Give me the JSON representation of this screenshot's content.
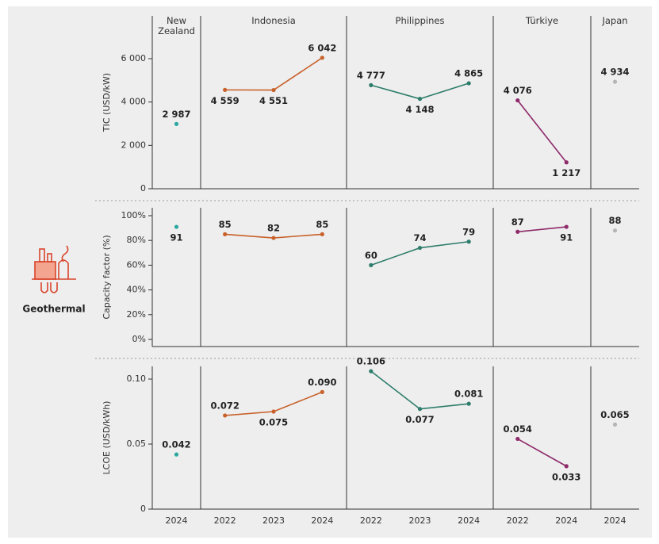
{
  "technology": "Geothermal",
  "chart_data": [
    {
      "type": "line",
      "title": "TIC (USD/kW)",
      "ylim": [
        0,
        8000
      ],
      "yticks": [
        0,
        {
          "value": 2000,
          "label": "2 000"
        },
        {
          "value": 4000,
          "label": "4 000"
        },
        {
          "value": 6000,
          "label": "6 000"
        }
      ],
      "series": [
        {
          "name": "New Zealand",
          "color": "#2aa8a0",
          "categories": [
            "2024"
          ],
          "values": [
            2987
          ],
          "value_labels": [
            "2 987"
          ]
        },
        {
          "name": "Indonesia",
          "color": "#c8612a",
          "categories": [
            "2022",
            "2023",
            "2024"
          ],
          "values": [
            4559,
            4551,
            6042
          ],
          "value_labels": [
            "4 559",
            "4 551",
            "6 042"
          ]
        },
        {
          "name": "Philippines",
          "color": "#2e7d6b",
          "categories": [
            "2022",
            "2023",
            "2024"
          ],
          "values": [
            4777,
            4148,
            4865
          ],
          "value_labels": [
            "4 777",
            "4 148",
            "4 865"
          ]
        },
        {
          "name": "Türkiye",
          "color": "#8e2a6a",
          "categories": [
            "2022",
            "2024"
          ],
          "values": [
            4076,
            1217
          ],
          "value_labels": [
            "4 076",
            "1 217"
          ]
        },
        {
          "name": "Japan",
          "color": "#b5b5b5",
          "categories": [
            "2024"
          ],
          "values": [
            4934
          ],
          "value_labels": [
            "4 934"
          ]
        }
      ]
    },
    {
      "type": "line",
      "title": "Capacity factor (%)",
      "ylim": [
        0,
        100
      ],
      "yticks": [
        {
          "value": 0,
          "label": "0%"
        },
        {
          "value": 20,
          "label": "20%"
        },
        {
          "value": 40,
          "label": "40%"
        },
        {
          "value": 60,
          "label": "60%"
        },
        {
          "value": 80,
          "label": "80%"
        },
        {
          "value": 100,
          "label": "100%"
        }
      ],
      "series": [
        {
          "name": "New Zealand",
          "color": "#2aa8a0",
          "categories": [
            "2024"
          ],
          "values": [
            91
          ]
        },
        {
          "name": "Indonesia",
          "color": "#c8612a",
          "categories": [
            "2022",
            "2023",
            "2024"
          ],
          "values": [
            85,
            82,
            85
          ]
        },
        {
          "name": "Philippines",
          "color": "#2e7d6b",
          "categories": [
            "2022",
            "2023",
            "2024"
          ],
          "values": [
            60,
            74,
            79
          ]
        },
        {
          "name": "Türkiye",
          "color": "#8e2a6a",
          "categories": [
            "2022",
            "2024"
          ],
          "values": [
            87,
            91
          ]
        },
        {
          "name": "Japan",
          "color": "#b5b5b5",
          "categories": [
            "2024"
          ],
          "values": [
            88
          ]
        }
      ]
    },
    {
      "type": "line",
      "title": "LCOE (USD/kWh)",
      "ylim": [
        0,
        0.11
      ],
      "yticks": [
        0,
        0.05,
        {
          "value": 0.1,
          "label": "0.10"
        }
      ],
      "series": [
        {
          "name": "New Zealand",
          "color": "#2aa8a0",
          "categories": [
            "2024"
          ],
          "values": [
            0.042
          ]
        },
        {
          "name": "Indonesia",
          "color": "#c8612a",
          "categories": [
            "2022",
            "2023",
            "2024"
          ],
          "values": [
            0.072,
            0.075,
            0.09
          ],
          "value_labels": [
            "0.072",
            "0.075",
            "0.090"
          ]
        },
        {
          "name": "Philippines",
          "color": "#2e7d6b",
          "categories": [
            "2022",
            "2023",
            "2024"
          ],
          "values": [
            0.106,
            0.077,
            0.081
          ]
        },
        {
          "name": "Türkiye",
          "color": "#8e2a6a",
          "categories": [
            "2022",
            "2024"
          ],
          "values": [
            0.054,
            0.033
          ]
        },
        {
          "name": "Japan",
          "color": "#b5b5b5",
          "categories": [
            "2024"
          ],
          "values": [
            0.065
          ]
        }
      ]
    }
  ]
}
